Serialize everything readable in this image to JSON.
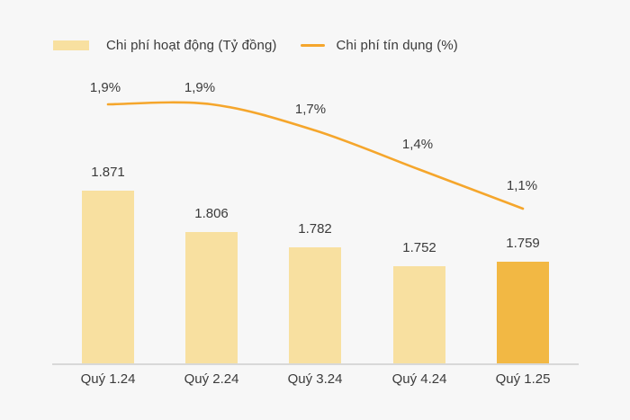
{
  "chart_data": {
    "type": "combo",
    "categories": [
      "Quý 1.24",
      "Quý 2.24",
      "Quý 3.24",
      "Quý 4.24",
      "Quý 1.25"
    ],
    "series": [
      {
        "name": "Chi phí hoạt động (Tỷ đồng)",
        "type": "bar",
        "values": [
          1871,
          1806,
          1782,
          1752,
          1759
        ],
        "labels": [
          "1.871",
          "1.806",
          "1.782",
          "1.752",
          "1.759"
        ],
        "highlight_index": 4
      },
      {
        "name": "Chi phí tín dụng (%)",
        "type": "line",
        "values": [
          1.9,
          1.9,
          1.7,
          1.4,
          1.1
        ],
        "labels": [
          "1,9%",
          "1,9%",
          "1,7%",
          "1,4%",
          "1,1%"
        ]
      }
    ],
    "legend_position": "top-left",
    "grid": false,
    "y_axis_visible": false,
    "x_axis_visible": true
  },
  "colors": {
    "background": "#F7F7F7",
    "bar": "#F8E0A0",
    "bar_highlight": "#F2B844",
    "line": "#F5A62C",
    "text": "#3B3B3B",
    "axis": "#D8D8D8"
  }
}
